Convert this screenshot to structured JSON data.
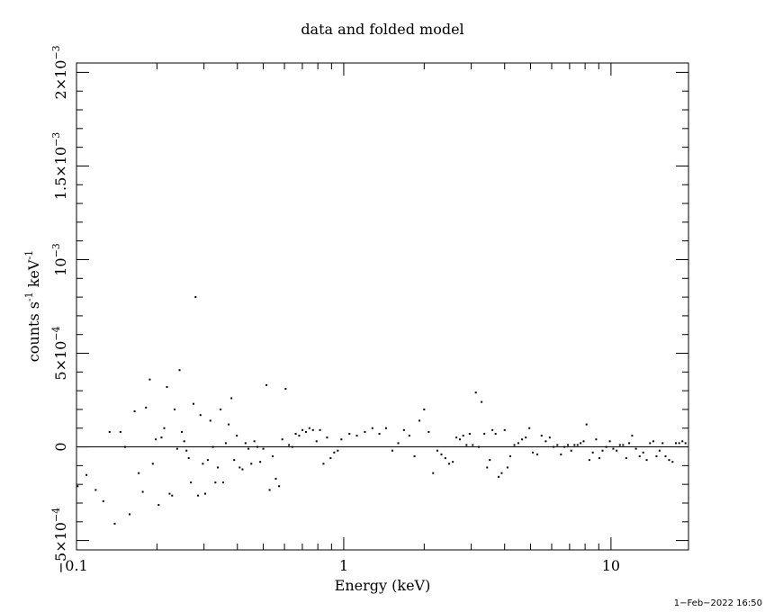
{
  "chart_data": {
    "type": "scatter",
    "title": "data and folded model",
    "xlabel": "Energy (keV)",
    "ylabel_main": "counts s",
    "ylabel_sup1": "-1",
    "ylabel_mid": " keV",
    "ylabel_sup2": "-1",
    "x_scale": "log",
    "xlim": [
      0.1,
      19.5
    ],
    "ylim": [
      -0.00055,
      0.00205
    ],
    "x_ticks": [
      {
        "value": 0.1,
        "label": "0.1"
      },
      {
        "value": 1,
        "label": "1"
      },
      {
        "value": 10,
        "label": "10"
      }
    ],
    "y_ticks": [
      {
        "value": -0.0005,
        "mant": "−5×10",
        "exp": "−4"
      },
      {
        "value": 0,
        "mant": "0",
        "exp": ""
      },
      {
        "value": 0.0005,
        "mant": "5×10",
        "exp": "−4"
      },
      {
        "value": 0.001,
        "mant": "10",
        "exp": "−3"
      },
      {
        "value": 0.0015,
        "mant": "1.5×10",
        "exp": "−3"
      },
      {
        "value": 0.002,
        "mant": "2×10",
        "exp": "−3"
      }
    ],
    "zero_line": 0,
    "series": [
      {
        "points": [
          [
            0.101,
            -0.00021
          ],
          [
            0.109,
            -0.00015
          ],
          [
            0.118,
            -0.00023
          ],
          [
            0.126,
            -0.00029
          ],
          [
            0.133,
            8e-05
          ],
          [
            0.139,
            -0.00041
          ],
          [
            0.146,
            8e-05
          ],
          [
            0.152,
            0.0
          ],
          [
            0.158,
            -0.00036
          ],
          [
            0.165,
            0.00019
          ],
          [
            0.171,
            -0.00014
          ],
          [
            0.177,
            -0.00024
          ],
          [
            0.182,
            0.00021
          ],
          [
            0.188,
            0.00036
          ],
          [
            0.193,
            -9e-05
          ],
          [
            0.198,
            4e-05
          ],
          [
            0.203,
            -0.00031
          ],
          [
            0.208,
            5e-05
          ],
          [
            0.213,
            0.0001
          ],
          [
            0.218,
            0.00032
          ],
          [
            0.223,
            -0.00025
          ],
          [
            0.228,
            -0.00026
          ],
          [
            0.233,
            0.0002
          ],
          [
            0.238,
            -1e-05
          ],
          [
            0.243,
            0.00041
          ],
          [
            0.248,
            8e-05
          ],
          [
            0.253,
            3e-05
          ],
          [
            0.258,
            -2e-05
          ],
          [
            0.263,
            -6e-05
          ],
          [
            0.268,
            -0.00019
          ],
          [
            0.274,
            0.00023
          ],
          [
            0.279,
            0.0008
          ],
          [
            0.285,
            -0.00026
          ],
          [
            0.291,
            0.00017
          ],
          [
            0.297,
            -9e-05
          ],
          [
            0.303,
            -0.00025
          ],
          [
            0.31,
            -7e-05
          ],
          [
            0.317,
            0.00014
          ],
          [
            0.324,
            0.0
          ],
          [
            0.331,
            -0.00019
          ],
          [
            0.338,
            -0.00011
          ],
          [
            0.346,
            0.0002
          ],
          [
            0.354,
            -0.00019
          ],
          [
            0.362,
            2e-05
          ],
          [
            0.371,
            0.00012
          ],
          [
            0.38,
            0.00026
          ],
          [
            0.389,
            -7e-05
          ],
          [
            0.398,
            6e-05
          ],
          [
            0.408,
            -0.00011
          ],
          [
            0.418,
            -0.00012
          ],
          [
            0.429,
            2e-05
          ],
          [
            0.44,
            -1e-05
          ],
          [
            0.451,
            -9e-05
          ],
          [
            0.463,
            3e-05
          ],
          [
            0.475,
            0.0
          ],
          [
            0.487,
            -8e-05
          ],
          [
            0.5,
            -1e-05
          ],
          [
            0.514,
            0.00033
          ],
          [
            0.528,
            -0.00023
          ],
          [
            0.542,
            -5e-05
          ],
          [
            0.557,
            -0.00017
          ],
          [
            0.573,
            -0.00021
          ],
          [
            0.589,
            4e-05
          ],
          [
            0.606,
            0.00031
          ],
          [
            0.624,
            1e-05
          ],
          [
            0.642,
            0.0
          ],
          [
            0.661,
            7e-05
          ],
          [
            0.681,
            6e-05
          ],
          [
            0.701,
            9e-05
          ],
          [
            0.722,
            8e-05
          ],
          [
            0.744,
            0.0001
          ],
          [
            0.767,
            9e-05
          ],
          [
            0.791,
            3e-05
          ],
          [
            0.815,
            9e-05
          ],
          [
            0.84,
            -9e-05
          ],
          [
            0.866,
            5e-05
          ],
          [
            0.893,
            -6e-05
          ],
          [
            0.921,
            -3e-05
          ],
          [
            0.95,
            -2e-05
          ],
          [
            0.98,
            4e-05
          ],
          [
            1.05,
            7e-05
          ],
          [
            1.12,
            6e-05
          ],
          [
            1.2,
            8e-05
          ],
          [
            1.28,
            0.0001
          ],
          [
            1.36,
            7e-05
          ],
          [
            1.44,
            0.0001
          ],
          [
            1.52,
            -2e-05
          ],
          [
            1.6,
            2e-05
          ],
          [
            1.68,
            9e-05
          ],
          [
            1.76,
            6e-05
          ],
          [
            1.84,
            -5e-05
          ],
          [
            1.92,
            0.00014
          ],
          [
            2.0,
            0.0002
          ],
          [
            2.08,
            8e-05
          ],
          [
            2.16,
            -0.00014
          ],
          [
            2.24,
            -2e-05
          ],
          [
            2.32,
            -4e-05
          ],
          [
            2.4,
            -6e-05
          ],
          [
            2.48,
            -9e-05
          ],
          [
            2.56,
            -8e-05
          ],
          [
            2.64,
            5e-05
          ],
          [
            2.72,
            4e-05
          ],
          [
            2.8,
            6e-05
          ],
          [
            2.88,
            1e-05
          ],
          [
            2.96,
            7e-05
          ],
          [
            3.04,
            1e-05
          ],
          [
            3.12,
            0.00029
          ],
          [
            3.2,
            0.0
          ],
          [
            3.28,
            0.00024
          ],
          [
            3.36,
            7e-05
          ],
          [
            3.44,
            -0.00011
          ],
          [
            3.52,
            -7e-05
          ],
          [
            3.6,
            9e-05
          ],
          [
            3.7,
            7e-05
          ],
          [
            3.8,
            -0.00016
          ],
          [
            3.9,
            -0.00014
          ],
          [
            4.0,
            9e-05
          ],
          [
            4.1,
            -0.00011
          ],
          [
            4.2,
            -5e-05
          ],
          [
            4.35,
            1e-05
          ],
          [
            4.5,
            2e-05
          ],
          [
            4.65,
            4e-05
          ],
          [
            4.8,
            5e-05
          ],
          [
            4.95,
            0.0001
          ],
          [
            5.1,
            -3e-05
          ],
          [
            5.3,
            -4e-05
          ],
          [
            5.5,
            6e-05
          ],
          [
            5.7,
            3e-05
          ],
          [
            5.9,
            5e-05
          ],
          [
            6.1,
            0.0
          ],
          [
            6.3,
            1e-05
          ],
          [
            6.5,
            -4e-05
          ],
          [
            6.7,
            0.0
          ],
          [
            6.9,
            1e-05
          ],
          [
            7.1,
            -2e-05
          ],
          [
            7.3,
            1e-05
          ],
          [
            7.5,
            1e-05
          ],
          [
            7.7,
            2e-05
          ],
          [
            7.9,
            3e-05
          ],
          [
            8.1,
            0.00012
          ],
          [
            8.3,
            -7e-05
          ],
          [
            8.55,
            -3e-05
          ],
          [
            8.8,
            4e-05
          ],
          [
            9.05,
            -6e-05
          ],
          [
            9.3,
            -2e-05
          ],
          [
            9.6,
            0.0
          ],
          [
            9.9,
            3e-05
          ],
          [
            10.2,
            -1e-05
          ],
          [
            10.5,
            -2e-05
          ],
          [
            10.8,
            1e-05
          ],
          [
            11.1,
            1e-05
          ],
          [
            11.4,
            -6e-05
          ],
          [
            11.7,
            2e-05
          ],
          [
            12.0,
            6e-05
          ],
          [
            12.4,
            -1e-05
          ],
          [
            12.8,
            -5e-05
          ],
          [
            13.2,
            -3e-05
          ],
          [
            13.6,
            -7e-05
          ],
          [
            14.0,
            2e-05
          ],
          [
            14.4,
            3e-05
          ],
          [
            14.8,
            -5e-05
          ],
          [
            15.2,
            -2e-05
          ],
          [
            15.6,
            2e-05
          ],
          [
            16.0,
            -5e-05
          ],
          [
            16.5,
            -7e-05
          ],
          [
            17.0,
            -8e-05
          ],
          [
            17.5,
            2e-05
          ],
          [
            18.0,
            2e-05
          ],
          [
            18.5,
            3e-05
          ],
          [
            19.0,
            2e-05
          ]
        ]
      }
    ]
  },
  "timestamp": "1−Feb−2022 16:50"
}
